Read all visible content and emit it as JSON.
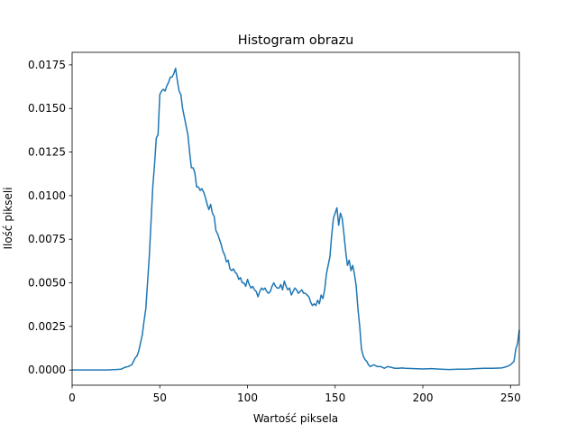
{
  "chart_data": {
    "type": "line",
    "title": "Histogram obrazu",
    "xlabel": "Wartość piksela",
    "ylabel": "Ilość pikseli",
    "xlim": [
      0,
      255
    ],
    "ylim": [
      -0.00087,
      0.01822
    ],
    "x_ticks": [
      0,
      50,
      100,
      150,
      200,
      250
    ],
    "x_tick_labels": [
      "0",
      "50",
      "100",
      "150",
      "200",
      "250"
    ],
    "y_ticks": [
      0.0,
      0.0025,
      0.005,
      0.0075,
      0.01,
      0.0125,
      0.015,
      0.0175
    ],
    "y_tick_labels": [
      "0.0000",
      "0.0025",
      "0.0050",
      "0.0075",
      "0.0100",
      "0.0125",
      "0.0150",
      "0.0175"
    ],
    "grid": false,
    "line_color": "#1f77b4",
    "series": [
      {
        "points": [
          [
            0,
            0.0
          ],
          [
            10,
            0.0
          ],
          [
            20,
            0.0
          ],
          [
            25,
            3e-05
          ],
          [
            28,
            5e-05
          ],
          [
            30,
            0.00015
          ],
          [
            32,
            0.0002
          ],
          [
            34,
            0.0003
          ],
          [
            35,
            0.0005
          ],
          [
            36,
            0.0007
          ],
          [
            37,
            0.0008
          ],
          [
            38,
            0.0011
          ],
          [
            40,
            0.002
          ],
          [
            41,
            0.0028
          ],
          [
            42,
            0.0035
          ],
          [
            43,
            0.005
          ],
          [
            44,
            0.0065
          ],
          [
            45,
            0.0085
          ],
          [
            46,
            0.0105
          ],
          [
            47,
            0.0118
          ],
          [
            48,
            0.0133
          ],
          [
            49,
            0.0135
          ],
          [
            50,
            0.0158
          ],
          [
            51,
            0.016
          ],
          [
            52,
            0.0161
          ],
          [
            53,
            0.016
          ],
          [
            54,
            0.0163
          ],
          [
            55,
            0.0165
          ],
          [
            56,
            0.0168
          ],
          [
            57,
            0.0168
          ],
          [
            58,
            0.017
          ],
          [
            59,
            0.0173
          ],
          [
            60,
            0.0166
          ],
          [
            61,
            0.016
          ],
          [
            62,
            0.0158
          ],
          [
            63,
            0.015
          ],
          [
            64,
            0.0145
          ],
          [
            65,
            0.014
          ],
          [
            66,
            0.0135
          ],
          [
            67,
            0.0125
          ],
          [
            68,
            0.0116
          ],
          [
            69,
            0.0116
          ],
          [
            70,
            0.0113
          ],
          [
            71,
            0.0105
          ],
          [
            72,
            0.0105
          ],
          [
            73,
            0.0103
          ],
          [
            74,
            0.0104
          ],
          [
            75,
            0.0102
          ],
          [
            76,
            0.0099
          ],
          [
            77,
            0.0095
          ],
          [
            78,
            0.0092
          ],
          [
            79,
            0.0095
          ],
          [
            80,
            0.009
          ],
          [
            81,
            0.0088
          ],
          [
            82,
            0.008
          ],
          [
            83,
            0.0078
          ],
          [
            84,
            0.0075
          ],
          [
            85,
            0.0072
          ],
          [
            86,
            0.0068
          ],
          [
            87,
            0.0066
          ],
          [
            88,
            0.0062
          ],
          [
            89,
            0.0063
          ],
          [
            90,
            0.0058
          ],
          [
            91,
            0.0057
          ],
          [
            92,
            0.0058
          ],
          [
            93,
            0.0056
          ],
          [
            94,
            0.0055
          ],
          [
            95,
            0.0052
          ],
          [
            96,
            0.0053
          ],
          [
            97,
            0.005
          ],
          [
            98,
            0.005
          ],
          [
            99,
            0.0048
          ],
          [
            100,
            0.0052
          ],
          [
            101,
            0.0049
          ],
          [
            102,
            0.0047
          ],
          [
            103,
            0.0048
          ],
          [
            104,
            0.0046
          ],
          [
            105,
            0.0045
          ],
          [
            106,
            0.0042
          ],
          [
            107,
            0.0045
          ],
          [
            108,
            0.0047
          ],
          [
            109,
            0.0046
          ],
          [
            110,
            0.0047
          ],
          [
            111,
            0.0045
          ],
          [
            112,
            0.0044
          ],
          [
            113,
            0.0045
          ],
          [
            114,
            0.0048
          ],
          [
            115,
            0.005
          ],
          [
            116,
            0.0048
          ],
          [
            117,
            0.0047
          ],
          [
            118,
            0.0047
          ],
          [
            119,
            0.0049
          ],
          [
            120,
            0.0046
          ],
          [
            121,
            0.0051
          ],
          [
            122,
            0.0048
          ],
          [
            123,
            0.0046
          ],
          [
            124,
            0.0047
          ],
          [
            125,
            0.0043
          ],
          [
            126,
            0.0045
          ],
          [
            127,
            0.0047
          ],
          [
            128,
            0.0046
          ],
          [
            129,
            0.0044
          ],
          [
            130,
            0.0045
          ],
          [
            131,
            0.0046
          ],
          [
            132,
            0.0044
          ],
          [
            133,
            0.0044
          ],
          [
            134,
            0.0043
          ],
          [
            135,
            0.0042
          ],
          [
            136,
            0.0039
          ],
          [
            137,
            0.0037
          ],
          [
            138,
            0.0038
          ],
          [
            139,
            0.0037
          ],
          [
            140,
            0.004
          ],
          [
            141,
            0.0038
          ],
          [
            142,
            0.0043
          ],
          [
            143,
            0.0041
          ],
          [
            144,
            0.0046
          ],
          [
            145,
            0.0055
          ],
          [
            146,
            0.006
          ],
          [
            147,
            0.0065
          ],
          [
            148,
            0.0077
          ],
          [
            149,
            0.0087
          ],
          [
            150,
            0.009
          ],
          [
            151,
            0.0093
          ],
          [
            152,
            0.0083
          ],
          [
            153,
            0.009
          ],
          [
            154,
            0.0087
          ],
          [
            155,
            0.0078
          ],
          [
            156,
            0.0068
          ],
          [
            157,
            0.006
          ],
          [
            158,
            0.0063
          ],
          [
            159,
            0.0057
          ],
          [
            160,
            0.006
          ],
          [
            161,
            0.0055
          ],
          [
            162,
            0.0048
          ],
          [
            163,
            0.0035
          ],
          [
            164,
            0.0025
          ],
          [
            165,
            0.0012
          ],
          [
            166,
            0.0008
          ],
          [
            167,
            0.0006
          ],
          [
            168,
            0.0005
          ],
          [
            169,
            0.0003
          ],
          [
            170,
            0.0002
          ],
          [
            172,
            0.0003
          ],
          [
            174,
            0.0002
          ],
          [
            176,
            0.0002
          ],
          [
            178,
            0.0001
          ],
          [
            180,
            0.0002
          ],
          [
            182,
            0.00015
          ],
          [
            184,
            0.0001
          ],
          [
            186,
            0.0001
          ],
          [
            188,
            0.00012
          ],
          [
            190,
            0.0001
          ],
          [
            195,
            8e-05
          ],
          [
            200,
            6e-05
          ],
          [
            205,
            8e-05
          ],
          [
            210,
            5e-05
          ],
          [
            215,
            3e-05
          ],
          [
            220,
            5e-05
          ],
          [
            225,
            5e-05
          ],
          [
            230,
            8e-05
          ],
          [
            235,
            0.0001
          ],
          [
            240,
            0.0001
          ],
          [
            245,
            0.00012
          ],
          [
            248,
            0.0002
          ],
          [
            250,
            0.0003
          ],
          [
            252,
            0.0005
          ],
          [
            253,
            0.0012
          ],
          [
            254,
            0.0015
          ],
          [
            255,
            0.0023
          ]
        ]
      }
    ]
  }
}
